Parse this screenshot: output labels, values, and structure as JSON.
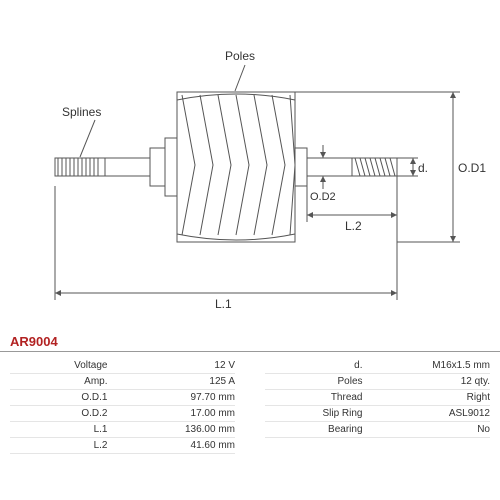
{
  "part_code": "AR9004",
  "labels": {
    "splines": "Splines",
    "poles": "Poles",
    "od1": "O.D1",
    "od2": "O.D2",
    "l1": "L.1",
    "l2": "L.2",
    "d": "d."
  },
  "specs_left": [
    {
      "label": "Voltage",
      "value": "12 V"
    },
    {
      "label": "Amp.",
      "value": "125 A"
    },
    {
      "label": "O.D.1",
      "value": "97.70 mm"
    },
    {
      "label": "O.D.2",
      "value": "17.00 mm"
    },
    {
      "label": "L.1",
      "value": "136.00 mm"
    },
    {
      "label": "L.2",
      "value": "41.60 mm"
    }
  ],
  "specs_right": [
    {
      "label": "d.",
      "value": "M16x1.5 mm"
    },
    {
      "label": "Poles",
      "value": "12 qty."
    },
    {
      "label": "Thread",
      "value": "Right"
    },
    {
      "label": "Slip Ring",
      "value": "ASL9012"
    },
    {
      "label": "Bearing",
      "value": "No"
    }
  ],
  "styling": {
    "stroke_color": "#555",
    "thin_stroke": 1,
    "label_fontsize": 12,
    "dim_fontsize": 11,
    "background": "#ffffff"
  }
}
